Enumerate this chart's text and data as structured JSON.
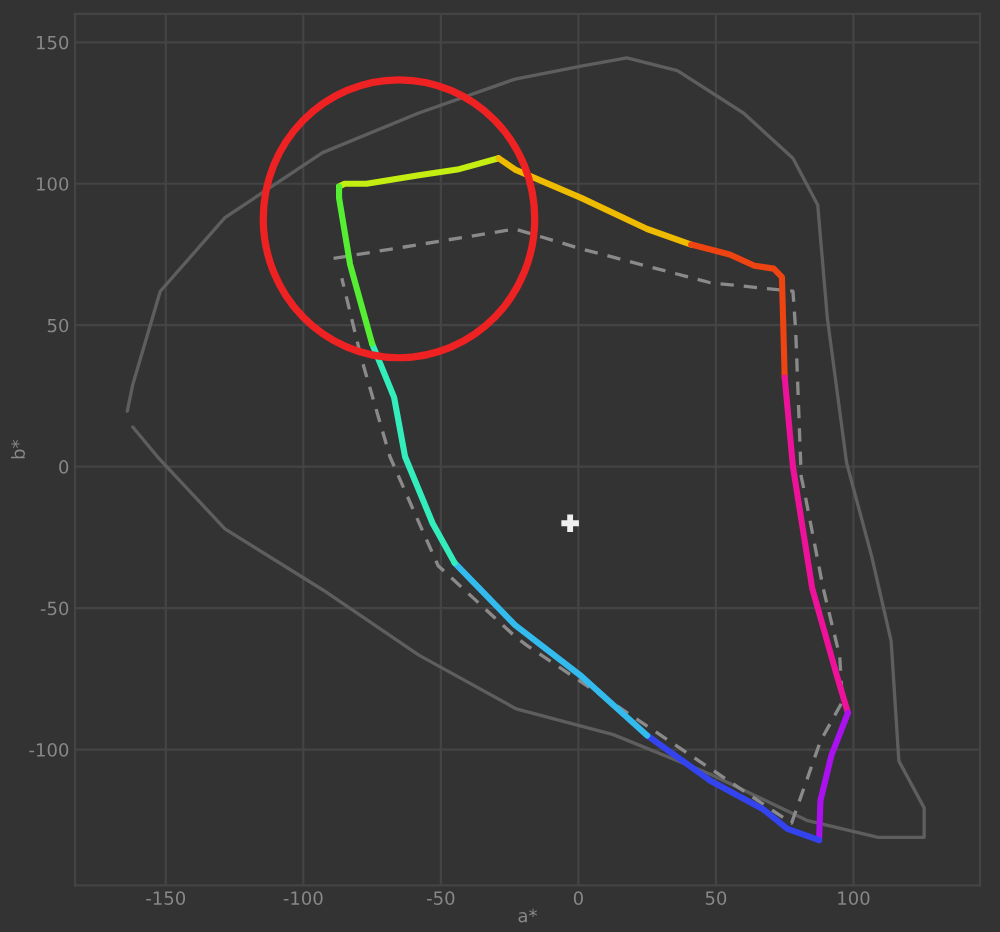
{
  "chart_data": {
    "type": "line",
    "xlabel": "a*",
    "ylabel": "b*",
    "xlim": [
      -183,
      146
    ],
    "ylim": [
      -148,
      160
    ],
    "xticks": [
      -150,
      -100,
      -50,
      0,
      50,
      100
    ],
    "yticks": [
      -100,
      -50,
      0,
      50,
      100,
      150
    ],
    "grid": true,
    "legend": false,
    "series": [
      {
        "color": "#5e5e5e",
        "line_style": "solid",
        "x": [
          -164,
          -162,
          -152,
          -128.5,
          -93,
          -58,
          -23,
          1,
          17.6,
          36,
          60,
          78,
          87,
          90.5,
          97.5,
          106.6,
          113.7,
          116.5,
          125.7,
          125.7,
          109,
          83,
          48,
          12.7,
          -22.6,
          -58,
          -93,
          -128.5,
          -153,
          -162
        ],
        "values": [
          19.6,
          29,
          62,
          88,
          111,
          125,
          137,
          141.6,
          144.5,
          140,
          125,
          109,
          92.5,
          52.6,
          1.4,
          -31.6,
          -61.7,
          -104,
          -120.6,
          -131,
          -131,
          -125,
          -108.7,
          -94.7,
          -85.6,
          -66.6,
          -43.5,
          -22,
          3.5,
          14
        ]
      },
      {
        "color": "#8a8a8a",
        "line_style": "dashed",
        "x": [
          -89,
          -23,
          1,
          48,
          78,
          79,
          81,
          82,
          89,
          95,
          96,
          88,
          77.5,
          -19,
          -23,
          -51,
          -59,
          -68.5,
          -79,
          -86
        ],
        "values": [
          73.6,
          84,
          77,
          65,
          62,
          48,
          -3.5,
          -8,
          -43,
          -67,
          -83,
          -97,
          -126,
          -63,
          -60,
          -35,
          -17.5,
          3.5,
          38.6,
          66.6
        ]
      },
      {
        "color": "#c4ee11",
        "line_style": "solid",
        "x": [
          -87,
          -85,
          -77,
          -58,
          -44,
          -29
        ],
        "values": [
          99,
          100,
          100,
          103,
          105,
          109
        ]
      },
      {
        "color": "#eebb00",
        "line_style": "solid",
        "x": [
          -29,
          -23,
          1,
          25,
          41
        ],
        "values": [
          109,
          105,
          95,
          84,
          78.5
        ]
      },
      {
        "color": "#ee4411",
        "line_style": "solid",
        "x": [
          41,
          55,
          64,
          71,
          74,
          75
        ],
        "values": [
          78.5,
          75,
          71,
          70,
          67,
          31.5
        ]
      },
      {
        "color": "#ee1199",
        "line_style": "solid",
        "x": [
          75,
          78,
          85,
          94,
          98
        ],
        "values": [
          31.5,
          0,
          -43,
          -74,
          -87
        ]
      },
      {
        "color": "#aa11ee",
        "line_style": "solid",
        "x": [
          98,
          92,
          88,
          87.5
        ],
        "values": [
          -87,
          -102,
          -118,
          -132
        ]
      },
      {
        "color": "#3344ee",
        "line_style": "solid",
        "x": [
          87.5,
          76,
          67,
          48,
          25
        ],
        "values": [
          -132,
          -128,
          -121,
          -111,
          -95
        ]
      },
      {
        "color": "#33bbee",
        "line_style": "solid",
        "x": [
          25,
          1,
          -23,
          -45
        ],
        "values": [
          -95,
          -74,
          -56,
          -34
        ]
      },
      {
        "color": "#33eebb",
        "line_style": "solid",
        "x": [
          -45,
          -53,
          -63,
          -67,
          -75
        ],
        "values": [
          -34,
          -20,
          3.5,
          24.5,
          43.5
        ]
      },
      {
        "color": "#55ee33",
        "line_style": "solid",
        "x": [
          -75,
          -83,
          -87,
          -87
        ],
        "values": [
          43.5,
          71.5,
          95,
          99
        ]
      },
      {
        "type": "scatter",
        "color": "#eeeeee",
        "marker": "cross",
        "x": [
          -3
        ],
        "values": [
          -20
        ]
      }
    ]
  }
}
